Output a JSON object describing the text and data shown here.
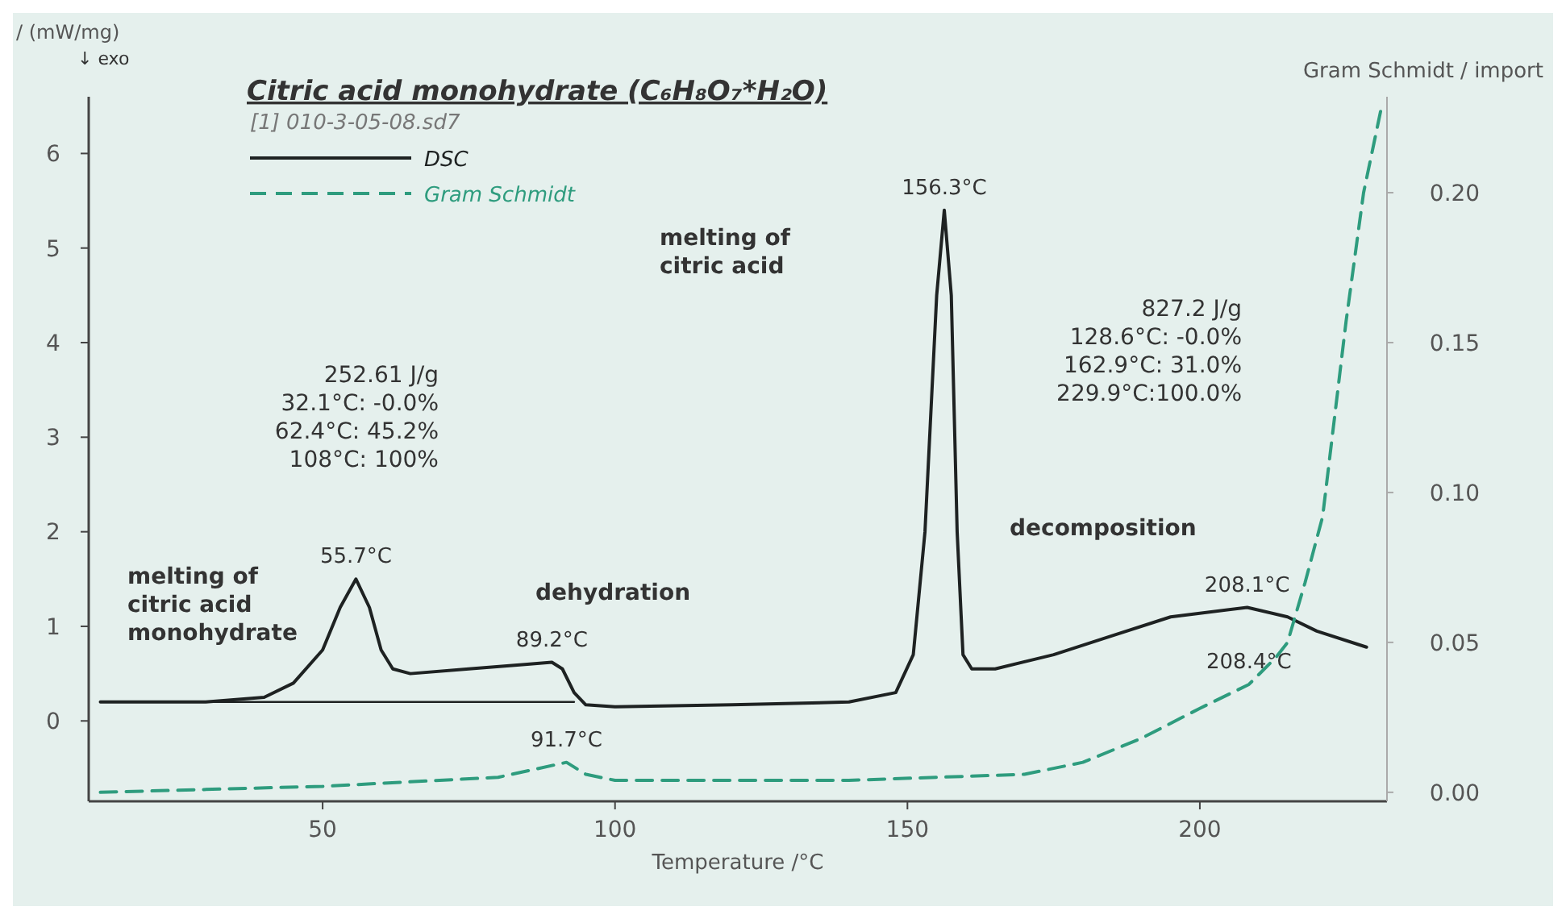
{
  "chart_data": {
    "type": "line",
    "title": "Citric acid monohydrate (C₆H₈O₇*H₂O)",
    "xlabel": "Temperature /°C",
    "ylabel": "/ (mW/mg)",
    "y2label": "Gram Schmidt / import",
    "legend_title": "[1] 010-3-05-08.sd7",
    "legend": "top left",
    "grid": false,
    "xlim": [
      10,
      232
    ],
    "xticks": [
      50,
      100,
      150,
      200
    ],
    "ylim": [
      -0.85,
      6.6
    ],
    "yticks": [
      0,
      1,
      2,
      3,
      4,
      5,
      6
    ],
    "y2lim": [
      -0.003,
      0.232
    ],
    "y2ticks": [
      {
        "value": 0,
        "label": "0.00"
      },
      0.05,
      {
        "value": 0.1,
        "label": "0.10"
      },
      0.15,
      {
        "value": 0.2,
        "label": "0.20"
      }
    ],
    "series": [
      {
        "name": "DSC",
        "color": "#1e2222",
        "line_style": "solid",
        "x": [
          12,
          30,
          40,
          45,
          50,
          53,
          55.7,
          58,
          60,
          62,
          65,
          75,
          85,
          89.2,
          91,
          93,
          95,
          100,
          120,
          140,
          148,
          151,
          153,
          155,
          156.3,
          157.5,
          158.5,
          159.5,
          161,
          165,
          175,
          185,
          195,
          208.1,
          215,
          220,
          228.5
        ],
        "values": [
          0.2,
          0.2,
          0.25,
          0.4,
          0.75,
          1.2,
          1.5,
          1.2,
          0.75,
          0.55,
          0.5,
          0.55,
          0.6,
          0.62,
          0.55,
          0.3,
          0.17,
          0.15,
          0.17,
          0.2,
          0.3,
          0.7,
          2,
          4.5,
          5.4,
          4.5,
          2,
          0.7,
          0.55,
          0.55,
          0.7,
          0.9,
          1.1,
          1.2,
          1.1,
          0.95,
          0.78
        ]
      },
      {
        "name": "Gram Schmidt",
        "color": "#2e9c7e",
        "line_style": "dashed",
        "axis": "y2",
        "x": [
          12,
          50,
          80,
          91.7,
          95,
          100,
          140,
          170,
          180,
          190,
          200,
          208.4,
          213,
          215,
          218,
          221,
          225,
          228,
          231
        ],
        "values": [
          0,
          0.002,
          0.005,
          0.01,
          0.006,
          0.004,
          0.004,
          0.006,
          0.01,
          0.018,
          0.028,
          0.036,
          0.045,
          0.05,
          0.07,
          0.092,
          0.157,
          0.2,
          0.228
        ]
      },
      {
        "color": "#1e2222",
        "line_style": "solid",
        "x": [
          12,
          93
        ],
        "values": [
          0.2,
          0.2
        ]
      }
    ],
    "annotations": [
      "↓ exo",
      "melting of\ncitric acid\nmonohydrate",
      "252.61 J/g\n32.1°C: -0.0%\n62.4°C: 45.2%\n108°C: 100%",
      "dehydration",
      "melting of\ncitric acid",
      "827.2 J/g\n128.6°C: -0.0%\n162.9°C: 31.0%\n229.9°C:100.0%",
      "decomposition",
      {
        "text": "55.7°C",
        "x": 55.7,
        "y": 1.5
      },
      {
        "text": "89.2°C",
        "x": 89.2,
        "y": 0.62
      },
      {
        "text": "91.7°C",
        "x": 91.7,
        "y": -0.438
      },
      {
        "text": "156.3°C",
        "x": 156.3,
        "y": 5.4
      },
      {
        "text": "208.1°C",
        "x": 208.1,
        "y": 1.2
      },
      {
        "text": "208.4°C",
        "x": 208.4,
        "y": 0.386
      }
    ]
  }
}
